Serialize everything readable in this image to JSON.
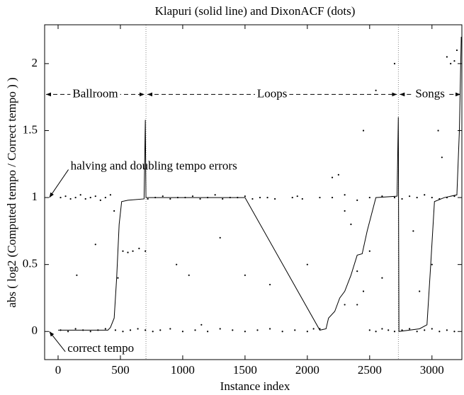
{
  "chart_data": {
    "type": "scatter",
    "title": "Klapuri (solid line) and DixonACF (dots)",
    "x_label": "Instance index",
    "y_label": "abs ( log2 (Computed tempo / Correct tempo ) )",
    "xlim": [
      -108,
      3240
    ],
    "ylim": [
      -0.21,
      2.29
    ],
    "xticks": [
      0,
      500,
      1000,
      1500,
      2000,
      2500,
      3000
    ],
    "yticks": [
      0,
      0.5,
      1,
      1.5,
      2
    ],
    "dividers": [
      705,
      2730
    ],
    "sections": [
      {
        "label": "Ballroom",
        "x0": -108,
        "x1": 705,
        "y": 1.77
      },
      {
        "label": "Loops",
        "x0": 705,
        "x1": 2730,
        "y": 1.77
      },
      {
        "label": "Songs",
        "x0": 2730,
        "x1": 3240,
        "y": 1.77
      }
    ],
    "annotations": [
      {
        "text": "halving and doubling tempo errors",
        "x": 100,
        "y": 1.23,
        "arrow_x": -70,
        "arrow_y": 1
      },
      {
        "text": "correct tempo",
        "x": 75,
        "y": -0.13,
        "arrow_x": -70,
        "arrow_y": 0
      }
    ],
    "series": [
      {
        "type": "scatter",
        "color": "#000000",
        "x": [
          20,
          60,
          100,
          140,
          180,
          220,
          260,
          300,
          340,
          380,
          420,
          720,
          780,
          840,
          900,
          960,
          1020,
          1080,
          1140,
          1200,
          1260,
          1320,
          1380,
          1440,
          1500,
          1560,
          1620,
          1680,
          1740,
          1880,
          1920,
          1960,
          2100,
          2200,
          2300,
          2400,
          2500,
          2600,
          2700,
          2760,
          2820,
          2880,
          2940,
          3000,
          3060,
          3120,
          3180,
          20,
          80,
          140,
          200,
          260,
          320,
          380,
          460,
          520,
          580,
          640,
          700,
          760,
          820,
          900,
          1000,
          1100,
          1200,
          1300,
          1400,
          1500,
          1600,
          1700,
          1800,
          1900,
          2000,
          2100,
          2500,
          2550,
          2600,
          2650,
          2700,
          2760,
          2820,
          2880,
          2940,
          3000,
          3060,
          3120,
          3180,
          520,
          560,
          600,
          650,
          700,
          480,
          450,
          300,
          150,
          1050,
          1300,
          1500,
          1700,
          2000,
          2200,
          2250,
          2300,
          2350,
          2400,
          2450,
          2500,
          2450,
          2550,
          2300,
          2400,
          2600,
          2900,
          3000,
          3050,
          3100,
          3150,
          3180,
          3200,
          3120,
          2700,
          3080,
          2850,
          950,
          1150,
          2050
        ],
        "values": [
          1.0,
          1.01,
          0.99,
          1.0,
          1.02,
          0.99,
          1.0,
          1.01,
          0.98,
          1.0,
          1.02,
          0.99,
          1.0,
          1.01,
          0.99,
          1.0,
          1.0,
          1.01,
          0.99,
          1.0,
          1.02,
          0.99,
          1.0,
          1.0,
          1.01,
          0.99,
          1.0,
          1.0,
          0.99,
          1.0,
          1.01,
          0.99,
          1.0,
          1.0,
          1.02,
          0.98,
          1.0,
          1.01,
          1.0,
          0.99,
          1.01,
          1.0,
          1.02,
          1.0,
          0.99,
          1.0,
          1.01,
          0.01,
          0.0,
          0.02,
          0.01,
          0.0,
          0.01,
          0.02,
          0.01,
          0.0,
          0.01,
          0.02,
          0.01,
          0.0,
          0.01,
          0.02,
          0.0,
          0.01,
          0.0,
          0.02,
          0.01,
          0.0,
          0.01,
          0.02,
          0.0,
          0.01,
          0.0,
          0.02,
          0.01,
          0.0,
          0.02,
          0.01,
          0.0,
          0.01,
          0.02,
          0.0,
          0.01,
          0.02,
          0.0,
          0.01,
          0.0,
          0.6,
          0.59,
          0.6,
          0.62,
          0.6,
          0.4,
          0.9,
          0.65,
          0.42,
          0.42,
          0.7,
          0.42,
          0.35,
          0.5,
          1.15,
          1.17,
          0.9,
          0.8,
          0.45,
          0.3,
          0.6,
          1.5,
          1.8,
          0.2,
          0.2,
          0.4,
          0.3,
          0.5,
          1.5,
          1.8,
          2.0,
          2.02,
          2.1,
          2.05,
          2.0,
          1.3,
          0.75,
          0.5,
          0.05,
          0.02
        ]
      },
      {
        "type": "line",
        "color": "#000000",
        "x": [
          0,
          400,
          420,
          450,
          470,
          490,
          510,
          560,
          690,
          700,
          705,
          720,
          1500,
          2100,
          2150,
          2170,
          2220,
          2260,
          2300,
          2350,
          2400,
          2440,
          2480,
          2550,
          2720,
          2730,
          2735,
          2900,
          2960,
          2990,
          3020,
          3100,
          3200,
          3220,
          3235
        ],
        "values": [
          0.01,
          0.01,
          0.03,
          0.1,
          0.4,
          0.8,
          0.97,
          0.98,
          0.99,
          1.58,
          1.0,
          1.0,
          1.0,
          0.01,
          0.02,
          0.1,
          0.15,
          0.25,
          0.3,
          0.42,
          0.57,
          0.58,
          0.75,
          1.0,
          1.01,
          1.6,
          0.0,
          0.02,
          0.05,
          0.5,
          0.97,
          1.0,
          1.02,
          1.5,
          2.2
        ]
      }
    ]
  }
}
